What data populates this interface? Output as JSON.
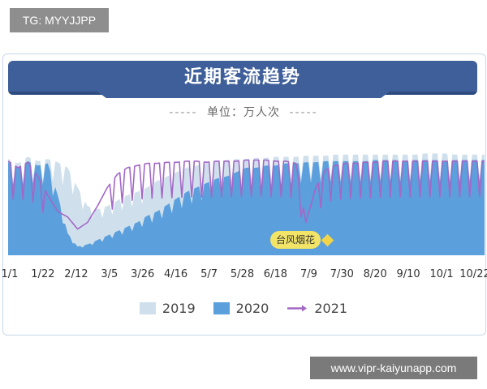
{
  "badge": {
    "text": "TG: MYYJJPP"
  },
  "watermark": {
    "text": "www.vipr-kaiyunapp.com"
  },
  "chart_data": {
    "type": "area",
    "title": "近期客流趋势",
    "subtitle": "单位：万人次",
    "unit_dashes": "-----",
    "x_tick_labels": [
      "1/1",
      "1/22",
      "2/12",
      "3/5",
      "3/26",
      "4/16",
      "5/7",
      "5/28",
      "6/18",
      "7/9",
      "7/30",
      "8/20",
      "9/10",
      "10/1",
      "10/22"
    ],
    "x_range": [
      "1/1",
      "11/1"
    ],
    "ylim": [
      0,
      100
    ],
    "grid": false,
    "legend": "bottom-center",
    "series": [
      {
        "name": "2019",
        "kind": "area",
        "color": "#cfe0ec",
        "values": [
          88,
          84,
          90,
          86,
          88,
          85,
          80,
          62,
          45,
          42,
          45,
          50,
          55,
          58,
          62,
          68,
          72,
          76,
          80,
          82,
          84,
          86,
          87,
          88,
          88,
          89,
          89,
          90,
          90,
          90,
          91,
          91,
          91,
          92,
          92,
          92,
          92,
          92,
          92,
          92,
          92,
          92,
          93,
          93,
          93,
          92,
          92,
          92,
          92
        ]
      },
      {
        "name": "2020",
        "kind": "area",
        "color": "#5b9fdd",
        "values": [
          85,
          80,
          86,
          82,
          84,
          55,
          20,
          8,
          10,
          14,
          18,
          22,
          26,
          30,
          36,
          40,
          46,
          52,
          58,
          62,
          66,
          70,
          72,
          76,
          80,
          80,
          82,
          82,
          84,
          84,
          85,
          85,
          86,
          86,
          86,
          86,
          86,
          87,
          87,
          87,
          86,
          87,
          87,
          87,
          86,
          87,
          87,
          87,
          87
        ]
      },
      {
        "name": "2021",
        "kind": "line",
        "color": "#a268c6",
        "values": [
          86,
          80,
          85,
          72,
          55,
          40,
          35,
          24,
          30,
          45,
          62,
          74,
          80,
          82,
          84,
          84,
          85,
          85,
          86,
          86,
          85,
          86,
          86,
          86,
          87,
          87,
          87,
          86,
          86,
          84,
          30,
          62,
          78,
          82,
          84,
          84,
          85,
          85,
          86,
          86,
          86,
          86,
          86,
          86,
          86,
          86,
          86,
          86,
          86
        ]
      }
    ],
    "annotations": [
      {
        "text": "台风烟花",
        "x": "7/28",
        "value": 30
      }
    ]
  }
}
